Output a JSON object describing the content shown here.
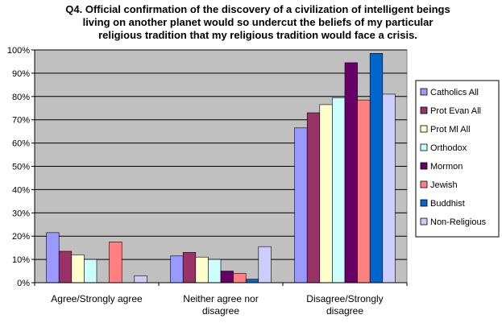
{
  "chart_data": {
    "type": "bar",
    "title_lines": [
      "Q4. Official confirmation of the discovery of a civilization of intelligent beings",
      "living on another planet would so undercut the beliefs of my particular",
      "religious tradition that my religious tradition would face a crisis."
    ],
    "categories": [
      [
        "Agree/Strongly agree"
      ],
      [
        "Neither agree nor",
        "disagree"
      ],
      [
        "Disagree/Strongly",
        "disagree"
      ]
    ],
    "ylim": [
      0,
      100
    ],
    "y_ticks": [
      "0%",
      "10%",
      "20%",
      "30%",
      "40%",
      "50%",
      "60%",
      "70%",
      "80%",
      "90%",
      "100%"
    ],
    "y_tick_values": [
      0,
      10,
      20,
      30,
      40,
      50,
      60,
      70,
      80,
      90,
      100
    ],
    "grid": true,
    "legend_position": "right",
    "plot_background": "#c0c0c0",
    "series": [
      {
        "name": "Catholics All",
        "color": "#9999ff",
        "values": [
          21.5,
          11.5,
          66.5
        ]
      },
      {
        "name": "Prot Evan All",
        "color": "#993366",
        "values": [
          13.5,
          13,
          73
        ]
      },
      {
        "name": "Prot Ml All",
        "color": "#ffffcc",
        "values": [
          12,
          11,
          76.5
        ]
      },
      {
        "name": "Orthodox",
        "color": "#ccffff",
        "values": [
          10,
          10,
          79.5
        ]
      },
      {
        "name": "Mormon",
        "color": "#660066",
        "values": [
          0,
          5,
          94.5
        ]
      },
      {
        "name": "Jewish",
        "color": "#ff8080",
        "values": [
          17.5,
          4,
          78.5
        ]
      },
      {
        "name": "Buddhist",
        "color": "#0066cc",
        "values": [
          0,
          1.5,
          98.5
        ]
      },
      {
        "name": "Non-Religious",
        "color": "#ccccff",
        "values": [
          3,
          15.5,
          81
        ]
      }
    ]
  }
}
